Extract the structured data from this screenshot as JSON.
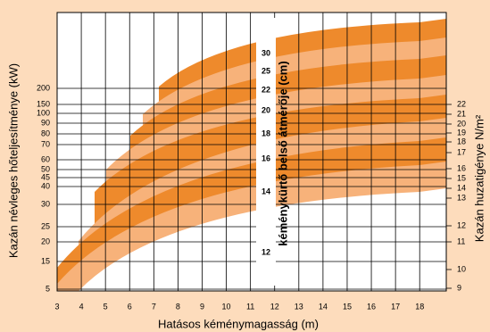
{
  "chart_data": {
    "type": "band-chart",
    "xlabel": "Hatásos kéménymagasság (m)",
    "ylabel": "Kazán névleges hőteljesítménye (kW)",
    "y2label": "Kazán huzatigénye N/m²",
    "band_title": "kéménykürtő belső átmérője (cm)",
    "bands": [
      30,
      25,
      22,
      20,
      18,
      16,
      14,
      12
    ],
    "band_colors": [
      "#ee8a2c",
      "#f7b27a"
    ],
    "xlim": [
      3,
      19.1
    ],
    "xticks": [
      3,
      4,
      5,
      6,
      7,
      8,
      9,
      10,
      11,
      12,
      13,
      14,
      15,
      16,
      17,
      18
    ],
    "yticks": [
      5,
      15,
      20,
      25,
      30,
      40,
      45,
      50,
      60,
      70,
      80,
      90,
      100,
      150,
      200
    ],
    "y2ticks": [
      9,
      10,
      11,
      12,
      13,
      14,
      15,
      16,
      17,
      18,
      19,
      20,
      21,
      22
    ],
    "grid": true
  }
}
